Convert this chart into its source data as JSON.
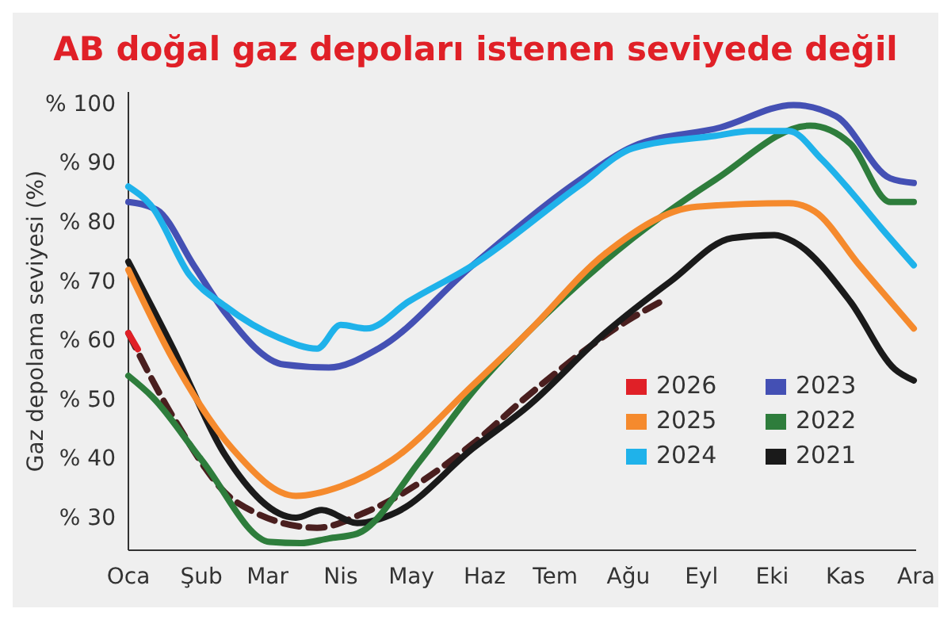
{
  "chart_data": {
    "type": "line",
    "title": "AB doğal gaz depoları istenen seviyede değil",
    "ylabel": "Gaz depolama seviyesi (%)",
    "xlim": [
      "--01-01",
      "--12-01"
    ],
    "xticks": [
      {
        "value": "--01-01",
        "label": "Oca"
      },
      {
        "value": "--02-01",
        "label": "Şub"
      },
      {
        "value": "--03-01",
        "label": "Mar"
      },
      {
        "value": "--04-01",
        "label": "Nis"
      },
      {
        "value": "--05-01",
        "label": "May"
      },
      {
        "value": "--06-01",
        "label": "Haz"
      },
      {
        "value": "--07-01",
        "label": "Tem"
      },
      {
        "value": "--08-01",
        "label": "Ağu"
      },
      {
        "value": "--09-01",
        "label": "Eyl"
      },
      {
        "value": "--10-01",
        "label": "Eki"
      },
      {
        "value": "--11-01",
        "label": "Kas"
      },
      {
        "value": "--12-01",
        "label": "Ara"
      }
    ],
    "ylim": [
      24.5,
      102
    ],
    "yticks": [
      {
        "value": 30,
        "label": "% 30"
      },
      {
        "value": 40,
        "label": "% 40"
      },
      {
        "value": 50,
        "label": "% 50"
      },
      {
        "value": 60,
        "label": "% 60"
      },
      {
        "value": 70,
        "label": "% 70"
      },
      {
        "value": 80,
        "label": "% 80"
      },
      {
        "value": 90,
        "label": "% 90"
      },
      {
        "value": 100,
        "label": "% 100"
      }
    ],
    "grid": false,
    "legend": "bottom right",
    "line_style": "solid",
    "marker": "none",
    "series": [
      {
        "name": "2026",
        "color": "#e02027",
        "x": [
          "--01-01",
          "--01-05"
        ],
        "values": [
          61.2,
          58.5
        ]
      },
      {
        "name": "2025",
        "color": "#f58a2d",
        "x": [
          "--01-01",
          "--01-20",
          "--02-14",
          "--03-13",
          "--04-01",
          "--04-23",
          "--05-27",
          "--06-19",
          "--07-22",
          "--08-30",
          "--10-08",
          "--10-19",
          "--11-07",
          "--11-30"
        ],
        "values": [
          71.9,
          56.7,
          41.7,
          33.7,
          35.3,
          39.8,
          52.4,
          61.2,
          74.6,
          82.6,
          83.2,
          81.8,
          72.7,
          62
        ]
      },
      {
        "name": "2024",
        "color": "#1fb2ea",
        "x": [
          "--01-01",
          "--01-11",
          "--01-27",
          "--02-11",
          "--03-06",
          "--03-22",
          "--04-01",
          "--04-12",
          "--04-30",
          "--05-27",
          "--07-11",
          "--08-03",
          "--09-07",
          "--09-22",
          "--10-08",
          "--10-22",
          "--11-03",
          "--11-16",
          "--11-30"
        ],
        "values": [
          86,
          82.6,
          71,
          65.8,
          60.4,
          58.6,
          62.6,
          62,
          66.6,
          72.7,
          86.1,
          92.5,
          94.6,
          95.4,
          95.4,
          90.6,
          85.3,
          79.1,
          72.7
        ]
      },
      {
        "name": "2023",
        "color": "#4450b4",
        "x": [
          "--01-01",
          "--01-13",
          "--01-29",
          "--02-11",
          "--03-08",
          "--03-27",
          "--04-17",
          "--05-27",
          "--07-11",
          "--08-03",
          "--09-09",
          "--10-10",
          "--10-28",
          "--11-20",
          "--11-30"
        ],
        "values": [
          83.4,
          82.1,
          72.5,
          64.7,
          55.9,
          55.4,
          58.6,
          72.7,
          87,
          92.8,
          96,
          99.8,
          97.9,
          87.4,
          86.6
        ]
      },
      {
        "name": "2022",
        "color": "#2e7d3c",
        "x": [
          "--01-01",
          "--01-11",
          "--02-01",
          "--03-02",
          "--03-15",
          "--03-27",
          "--04-08",
          "--05-05",
          "--05-27",
          "--06-19",
          "--08-03",
          "--09-07",
          "--10-17",
          "--11-03",
          "--11-20",
          "--11-30"
        ],
        "values": [
          54,
          50.5,
          39.8,
          25.9,
          25.7,
          26.5,
          27.3,
          39.8,
          51.3,
          61.2,
          77.3,
          87.2,
          96.3,
          93.3,
          83.4,
          83.4
        ]
      },
      {
        "name": "2021",
        "color": "#1a1a1a",
        "x": [
          "--01-01",
          "--01-20",
          "--02-11",
          "--03-13",
          "--03-24",
          "--04-08",
          "--04-25",
          "--05-27",
          "--06-19",
          "--07-22",
          "--08-19",
          "--09-14",
          "--10-02",
          "--10-10",
          "--11-03",
          "--11-22",
          "--11-30"
        ],
        "values": [
          73.3,
          58.6,
          40.6,
          30,
          31.3,
          29.1,
          31,
          41.7,
          48.7,
          61.2,
          70,
          77.3,
          77.8,
          76.7,
          66.6,
          55.1,
          53.2
        ]
      },
      {
        "color": "#4a1f1f",
        "line_style": "dashed",
        "x": [
          "--01-01",
          "--01-20",
          "--02-16",
          "--03-22",
          "--04-12",
          "--05-27",
          "--06-19",
          "--08-03",
          "--08-15"
        ],
        "values": [
          61.2,
          47,
          32.6,
          28.3,
          31,
          42.5,
          50.5,
          63.9,
          66.6
        ]
      }
    ]
  }
}
